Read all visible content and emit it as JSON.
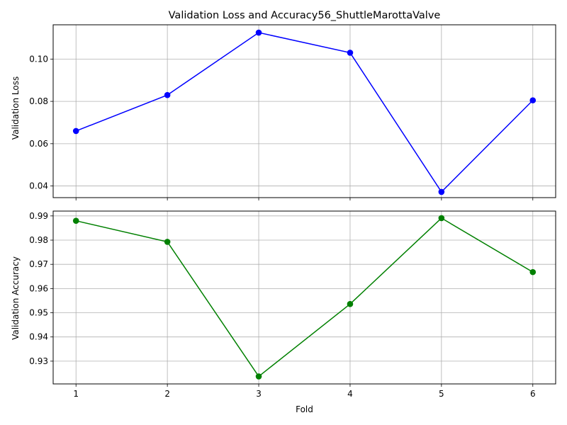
{
  "chart_data": [
    {
      "type": "line",
      "title": "Validation Loss and Accuracy56_ShuttleMarottaValve",
      "xlabel": "",
      "ylabel": "Validation Loss",
      "x": [
        1,
        2,
        3,
        4,
        5,
        6
      ],
      "series": [
        {
          "values": [
            0.066,
            0.083,
            0.1125,
            0.103,
            0.0372,
            0.0805
          ],
          "color": "#0000ff",
          "marker": "circle"
        }
      ],
      "xlim": [
        0.75,
        6.25
      ],
      "ylim": [
        0.0345,
        0.1162
      ],
      "yticks": [
        0.04,
        0.06,
        0.08,
        0.1
      ],
      "ytick_labels": [
        "0.04",
        "0.06",
        "0.08",
        "0.10"
      ],
      "xtick_labels_shown": false,
      "grid": true
    },
    {
      "type": "line",
      "title": "",
      "xlabel": "Fold",
      "ylabel": "Validation Accuracy",
      "x": [
        1,
        2,
        3,
        4,
        5,
        6
      ],
      "series": [
        {
          "values": [
            0.988,
            0.9793,
            0.9237,
            0.9536,
            0.9891,
            0.9668
          ],
          "color": "#008000",
          "marker": "circle"
        }
      ],
      "xlim": [
        0.75,
        6.25
      ],
      "ylim": [
        0.9206,
        0.992
      ],
      "xticks": [
        1,
        2,
        3,
        4,
        5,
        6
      ],
      "xtick_labels": [
        "1",
        "2",
        "3",
        "4",
        "5",
        "6"
      ],
      "yticks": [
        0.93,
        0.94,
        0.95,
        0.96,
        0.97,
        0.98,
        0.99
      ],
      "ytick_labels": [
        "0.93",
        "0.94",
        "0.95",
        "0.96",
        "0.97",
        "0.98",
        "0.99"
      ],
      "xtick_labels_shown": true,
      "grid": true
    }
  ]
}
